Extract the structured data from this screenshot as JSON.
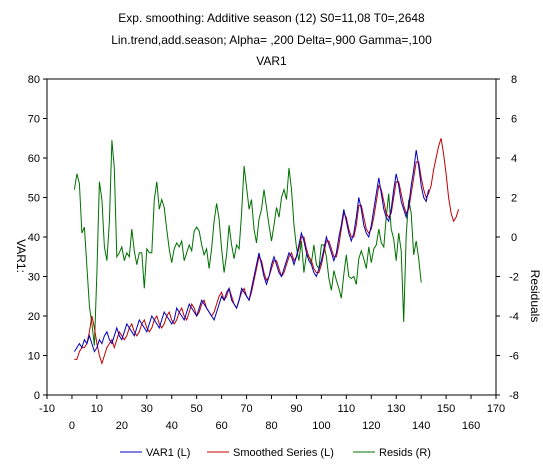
{
  "chart_data": {
    "type": "line",
    "title": "Exp. smoothing: Additive season (12) S0=11,08 T0=,2648",
    "subtitle": "Lin.trend,add.season; Alpha=  ,200 Delta=,900 Gamma=,100",
    "subtitle2": "VAR1",
    "ylabel_left": "VAR1:",
    "ylabel_right": "Residuals",
    "xlim": [
      -10,
      170
    ],
    "ylim_left": [
      0,
      80
    ],
    "ylim_right": [
      -8,
      8
    ],
    "x_ticks_top": [
      "-10",
      "10",
      "30",
      "50",
      "70",
      "90",
      "110",
      "130",
      "150",
      "170"
    ],
    "x_ticks_bottom": [
      "0",
      "20",
      "40",
      "60",
      "80",
      "100",
      "120",
      "140",
      "160"
    ],
    "y_ticks_left": [
      "0",
      "10",
      "20",
      "30",
      "40",
      "50",
      "60",
      "70",
      "80"
    ],
    "y_ticks_right": [
      "-8",
      "-6",
      "-4",
      "-2",
      "0",
      "2",
      "4",
      "6",
      "8"
    ],
    "grid": false,
    "legend_position": "bottom",
    "series": [
      {
        "name": "VAR1 (L)",
        "axis": "left",
        "color": "#0000c0",
        "x_start": 1,
        "values": [
          11,
          12,
          13,
          12,
          14,
          13,
          15,
          13,
          11,
          12,
          14,
          13,
          15,
          16,
          14,
          13,
          15,
          17,
          15,
          14,
          16,
          18,
          17,
          16,
          15,
          17,
          19,
          18,
          17,
          16,
          18,
          20,
          19,
          18,
          17,
          19,
          21,
          20,
          19,
          18,
          19,
          22,
          21,
          20,
          19,
          21,
          23,
          22,
          21,
          20,
          22,
          24,
          23,
          22,
          21,
          20,
          19,
          21,
          23,
          25,
          24,
          26,
          27,
          24,
          23,
          22,
          24,
          27,
          26,
          25,
          24,
          27,
          30,
          33,
          36,
          33,
          30,
          28,
          30,
          33,
          35,
          33,
          31,
          30,
          32,
          34,
          36,
          35,
          33,
          35,
          38,
          41,
          39,
          36,
          34,
          33,
          31,
          30,
          32,
          34,
          37,
          40,
          38,
          36,
          34,
          36,
          40,
          43,
          47,
          44,
          41,
          39,
          41,
          45,
          50,
          47,
          43,
          41,
          40,
          43,
          47,
          51,
          55,
          51,
          47,
          45,
          44,
          47,
          52,
          56,
          53,
          49,
          47,
          45,
          48,
          53,
          57,
          62,
          58,
          53,
          50,
          49,
          52
        ]
      },
      {
        "name": "Smoothed Series (L)",
        "axis": "left",
        "color": "#c00000",
        "x_start": 1,
        "values": [
          9,
          9,
          11,
          12,
          12,
          13,
          16,
          20,
          17,
          13,
          10,
          8,
          10,
          12,
          13,
          14,
          12,
          14,
          16,
          15,
          14,
          15,
          17,
          18,
          16,
          15,
          16,
          18,
          19,
          17,
          16,
          17,
          19,
          20,
          18,
          17,
          18,
          20,
          21,
          19,
          18,
          19,
          21,
          22,
          20,
          19,
          21,
          23,
          22,
          20,
          21,
          23,
          24,
          22,
          21,
          20,
          21,
          23,
          25,
          26,
          24,
          25,
          27,
          25,
          23,
          22,
          24,
          26,
          27,
          25,
          24,
          26,
          29,
          32,
          35,
          34,
          31,
          29,
          30,
          32,
          34,
          34,
          32,
          30,
          31,
          33,
          35,
          36,
          34,
          35,
          37,
          40,
          40,
          37,
          35,
          34,
          32,
          31,
          31,
          33,
          36,
          39,
          39,
          37,
          35,
          35,
          38,
          42,
          46,
          45,
          42,
          40,
          40,
          43,
          48,
          48,
          45,
          42,
          41,
          42,
          45,
          49,
          53,
          52,
          49,
          46,
          45,
          46,
          50,
          54,
          54,
          51,
          48,
          46,
          47,
          51,
          55,
          59,
          59,
          55,
          52,
          50,
          51,
          53,
          57,
          60,
          63,
          65,
          61,
          56,
          50,
          46,
          44,
          45,
          47
        ]
      },
      {
        "name": "Resids (R)",
        "axis": "right",
        "color": "#007000",
        "x_start": 1,
        "values": [
          2.4,
          3.2,
          2.7,
          0.2,
          0.5,
          -1.5,
          -3.5,
          -4.4,
          -5.5,
          -1.8,
          2.8,
          1.9,
          -0.5,
          -1.2,
          0.8,
          4.9,
          3.5,
          -1,
          -0.8,
          -0.5,
          -1.2,
          -0.8,
          -1,
          0.4,
          -0.7,
          -1.4,
          -0.8,
          -0.8,
          -2.6,
          -0.6,
          -0.8,
          -0.8,
          1.9,
          2.8,
          1.4,
          1.9,
          1.5,
          0.4,
          -0.6,
          -1.3,
          -0.6,
          -0.3,
          -0.5,
          -0.2,
          -1.2,
          -0.8,
          -0.4,
          -0.7,
          0.3,
          0.5,
          0.3,
          -0.4,
          -0.9,
          -0.6,
          -1.6,
          -0.6,
          0.8,
          1.7,
          0.9,
          -0.6,
          -1.8,
          -0.9,
          0.6,
          -0.4,
          -1.1,
          -0.4,
          -0.6,
          1.2,
          3.6,
          2.5,
          1.4,
          1.9,
          0.4,
          -0.3,
          0.9,
          1.4,
          2.4,
          1.5,
          0.6,
          -0.2,
          0.6,
          1.5,
          1,
          2,
          2.4,
          1.9,
          3.5,
          2.4,
          0.6,
          -0.5,
          -1.2,
          -0.2,
          -1.8,
          -0.9,
          -1,
          -1.3,
          -0.4,
          -1.4,
          -1.6,
          -0.4,
          -0.4,
          -1,
          -2.1,
          -2.7,
          -1.7,
          -2.2,
          -2.6,
          -3.1,
          -1.9,
          -0.9,
          -2,
          -2.1,
          -2,
          -2.4,
          -1.1,
          -0.7,
          -1.1,
          -1.6,
          -0.5,
          -1.3,
          -0.6,
          -0.4,
          0.4,
          -0.3,
          -0.5,
          1,
          2.2,
          0.4,
          -0.1,
          -1.2,
          0.2,
          -0.7,
          -4.3,
          0.1,
          1.9,
          1.2,
          -0.9,
          -0.2,
          -1.1,
          -2.3
        ]
      }
    ]
  }
}
